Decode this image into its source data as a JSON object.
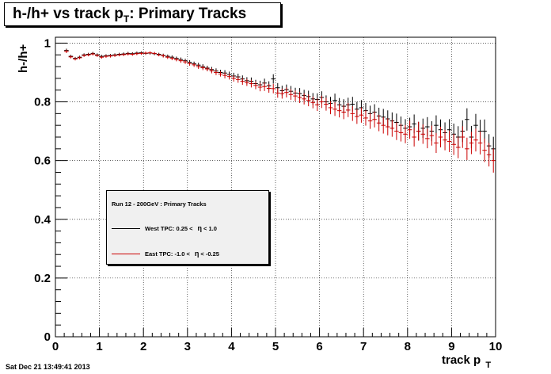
{
  "title": {
    "main": "h-/h+ vs track p",
    "sub": "T",
    "suffix": ": Primary Tracks"
  },
  "timestamp": "Sat Dec 21 13:49:41 2013",
  "colors": {
    "west": "#000000",
    "east": "#cc0000"
  },
  "legend": {
    "header": "Run 12 - 200GeV : Primary Tracks",
    "entries": [
      {
        "label_a": "West TPC: 0.25 <",
        "eta": "η",
        "label_b": "< 1.0"
      },
      {
        "label_a": "East TPC: -1.0 <",
        "eta": "η",
        "label_b": "< -0.25"
      }
    ]
  },
  "chart_data": {
    "type": "scatter",
    "ylabel": "h-/h+",
    "xlabel_main": "track p",
    "xlabel_sub": "T",
    "xlim": [
      0,
      10
    ],
    "ylim": [
      0,
      1.02
    ],
    "grid": true,
    "x_ticks": [
      "0",
      "1",
      "2",
      "3",
      "4",
      "5",
      "6",
      "7",
      "8",
      "9",
      "10"
    ],
    "y_ticks": [
      "0",
      "0.2",
      "0.4",
      "0.6",
      "0.8",
      "1"
    ],
    "bin_width": 0.1,
    "series": [
      {
        "name": "West TPC",
        "x": [
          0.25,
          0.35,
          0.45,
          0.55,
          0.65,
          0.75,
          0.85,
          0.95,
          1.05,
          1.15,
          1.25,
          1.35,
          1.45,
          1.55,
          1.65,
          1.75,
          1.85,
          1.95,
          2.05,
          2.15,
          2.25,
          2.35,
          2.45,
          2.55,
          2.65,
          2.75,
          2.85,
          2.95,
          3.05,
          3.15,
          3.25,
          3.35,
          3.45,
          3.55,
          3.65,
          3.75,
          3.85,
          3.95,
          4.05,
          4.15,
          4.25,
          4.35,
          4.45,
          4.55,
          4.65,
          4.75,
          4.85,
          4.95,
          5.05,
          5.15,
          5.25,
          5.35,
          5.45,
          5.55,
          5.65,
          5.75,
          5.85,
          5.95,
          6.05,
          6.15,
          6.25,
          6.35,
          6.45,
          6.55,
          6.65,
          6.75,
          6.85,
          6.95,
          7.05,
          7.15,
          7.25,
          7.35,
          7.45,
          7.55,
          7.65,
          7.75,
          7.85,
          7.95,
          8.05,
          8.15,
          8.25,
          8.35,
          8.45,
          8.55,
          8.65,
          8.75,
          8.85,
          8.95,
          9.05,
          9.15,
          9.25,
          9.35,
          9.45,
          9.55,
          9.65,
          9.75,
          9.85,
          9.95
        ],
        "y": [
          0.975,
          0.955,
          0.948,
          0.952,
          0.96,
          0.962,
          0.965,
          0.96,
          0.955,
          0.957,
          0.958,
          0.96,
          0.962,
          0.963,
          0.965,
          0.964,
          0.966,
          0.967,
          0.965,
          0.966,
          0.964,
          0.962,
          0.958,
          0.955,
          0.952,
          0.948,
          0.944,
          0.94,
          0.935,
          0.93,
          0.925,
          0.92,
          0.915,
          0.91,
          0.905,
          0.9,
          0.898,
          0.893,
          0.888,
          0.885,
          0.878,
          0.872,
          0.87,
          0.862,
          0.858,
          0.864,
          0.855,
          0.878,
          0.848,
          0.838,
          0.842,
          0.836,
          0.83,
          0.828,
          0.822,
          0.818,
          0.81,
          0.808,
          0.815,
          0.8,
          0.795,
          0.805,
          0.79,
          0.785,
          0.79,
          0.792,
          0.775,
          0.78,
          0.77,
          0.76,
          0.765,
          0.752,
          0.748,
          0.742,
          0.735,
          0.73,
          0.72,
          0.71,
          0.715,
          0.725,
          0.7,
          0.71,
          0.715,
          0.7,
          0.72,
          0.705,
          0.695,
          0.705,
          0.69,
          0.68,
          0.7,
          0.74,
          0.68,
          0.72,
          0.7,
          0.7,
          0.65,
          0.64
        ],
        "err": [
          0.006,
          0.005,
          0.005,
          0.005,
          0.005,
          0.005,
          0.005,
          0.005,
          0.005,
          0.005,
          0.005,
          0.005,
          0.005,
          0.005,
          0.005,
          0.005,
          0.005,
          0.005,
          0.005,
          0.005,
          0.005,
          0.005,
          0.006,
          0.006,
          0.006,
          0.006,
          0.007,
          0.007,
          0.007,
          0.007,
          0.008,
          0.008,
          0.008,
          0.009,
          0.009,
          0.009,
          0.01,
          0.01,
          0.011,
          0.011,
          0.012,
          0.012,
          0.013,
          0.013,
          0.014,
          0.015,
          0.015,
          0.016,
          0.016,
          0.017,
          0.017,
          0.018,
          0.018,
          0.019,
          0.019,
          0.02,
          0.02,
          0.021,
          0.021,
          0.022,
          0.022,
          0.023,
          0.023,
          0.024,
          0.024,
          0.025,
          0.025,
          0.026,
          0.026,
          0.027,
          0.027,
          0.028,
          0.028,
          0.029,
          0.029,
          0.03,
          0.03,
          0.031,
          0.031,
          0.032,
          0.032,
          0.033,
          0.033,
          0.034,
          0.034,
          0.035,
          0.035,
          0.036,
          0.036,
          0.037,
          0.037,
          0.038,
          0.038,
          0.039,
          0.039,
          0.04,
          0.04,
          0.041
        ]
      },
      {
        "name": "East TPC",
        "x": [
          0.25,
          0.35,
          0.45,
          0.55,
          0.65,
          0.75,
          0.85,
          0.95,
          1.05,
          1.15,
          1.25,
          1.35,
          1.45,
          1.55,
          1.65,
          1.75,
          1.85,
          1.95,
          2.05,
          2.15,
          2.25,
          2.35,
          2.45,
          2.55,
          2.65,
          2.75,
          2.85,
          2.95,
          3.05,
          3.15,
          3.25,
          3.35,
          3.45,
          3.55,
          3.65,
          3.75,
          3.85,
          3.95,
          4.05,
          4.15,
          4.25,
          4.35,
          4.45,
          4.55,
          4.65,
          4.75,
          4.85,
          4.95,
          5.05,
          5.15,
          5.25,
          5.35,
          5.45,
          5.55,
          5.65,
          5.75,
          5.85,
          5.95,
          6.05,
          6.15,
          6.25,
          6.35,
          6.45,
          6.55,
          6.65,
          6.75,
          6.85,
          6.95,
          7.05,
          7.15,
          7.25,
          7.35,
          7.45,
          7.55,
          7.65,
          7.75,
          7.85,
          7.95,
          8.05,
          8.15,
          8.25,
          8.35,
          8.45,
          8.55,
          8.65,
          8.75,
          8.85,
          8.95,
          9.05,
          9.15,
          9.25,
          9.35,
          9.45,
          9.55,
          9.65,
          9.75,
          9.85,
          9.95
        ],
        "y": [
          0.972,
          0.953,
          0.946,
          0.95,
          0.958,
          0.96,
          0.963,
          0.958,
          0.952,
          0.955,
          0.956,
          0.958,
          0.96,
          0.961,
          0.963,
          0.962,
          0.964,
          0.965,
          0.966,
          0.967,
          0.965,
          0.96,
          0.957,
          0.952,
          0.948,
          0.944,
          0.94,
          0.936,
          0.93,
          0.926,
          0.92,
          0.916,
          0.912,
          0.906,
          0.9,
          0.895,
          0.89,
          0.886,
          0.88,
          0.876,
          0.87,
          0.866,
          0.862,
          0.856,
          0.85,
          0.852,
          0.846,
          0.845,
          0.83,
          0.828,
          0.832,
          0.825,
          0.82,
          0.815,
          0.81,
          0.805,
          0.798,
          0.79,
          0.8,
          0.792,
          0.78,
          0.775,
          0.77,
          0.765,
          0.772,
          0.76,
          0.75,
          0.755,
          0.745,
          0.735,
          0.74,
          0.728,
          0.72,
          0.715,
          0.71,
          0.7,
          0.695,
          0.69,
          0.705,
          0.68,
          0.7,
          0.69,
          0.675,
          0.685,
          0.66,
          0.68,
          0.67,
          0.665,
          0.655,
          0.645,
          0.68,
          0.64,
          0.66,
          0.67,
          0.66,
          0.635,
          0.62,
          0.6
        ],
        "err": [
          0.006,
          0.005,
          0.005,
          0.005,
          0.005,
          0.005,
          0.005,
          0.005,
          0.005,
          0.005,
          0.005,
          0.005,
          0.005,
          0.005,
          0.005,
          0.005,
          0.005,
          0.005,
          0.005,
          0.005,
          0.005,
          0.005,
          0.006,
          0.006,
          0.006,
          0.006,
          0.007,
          0.007,
          0.007,
          0.007,
          0.008,
          0.008,
          0.008,
          0.009,
          0.009,
          0.009,
          0.01,
          0.01,
          0.011,
          0.011,
          0.012,
          0.012,
          0.013,
          0.013,
          0.014,
          0.015,
          0.015,
          0.016,
          0.016,
          0.017,
          0.017,
          0.018,
          0.018,
          0.019,
          0.019,
          0.02,
          0.02,
          0.021,
          0.021,
          0.022,
          0.022,
          0.023,
          0.023,
          0.024,
          0.024,
          0.025,
          0.025,
          0.026,
          0.026,
          0.027,
          0.027,
          0.028,
          0.028,
          0.029,
          0.029,
          0.03,
          0.03,
          0.031,
          0.031,
          0.032,
          0.032,
          0.033,
          0.033,
          0.034,
          0.034,
          0.035,
          0.035,
          0.036,
          0.036,
          0.037,
          0.037,
          0.038,
          0.038,
          0.039,
          0.039,
          0.04,
          0.04,
          0.041
        ]
      }
    ]
  }
}
